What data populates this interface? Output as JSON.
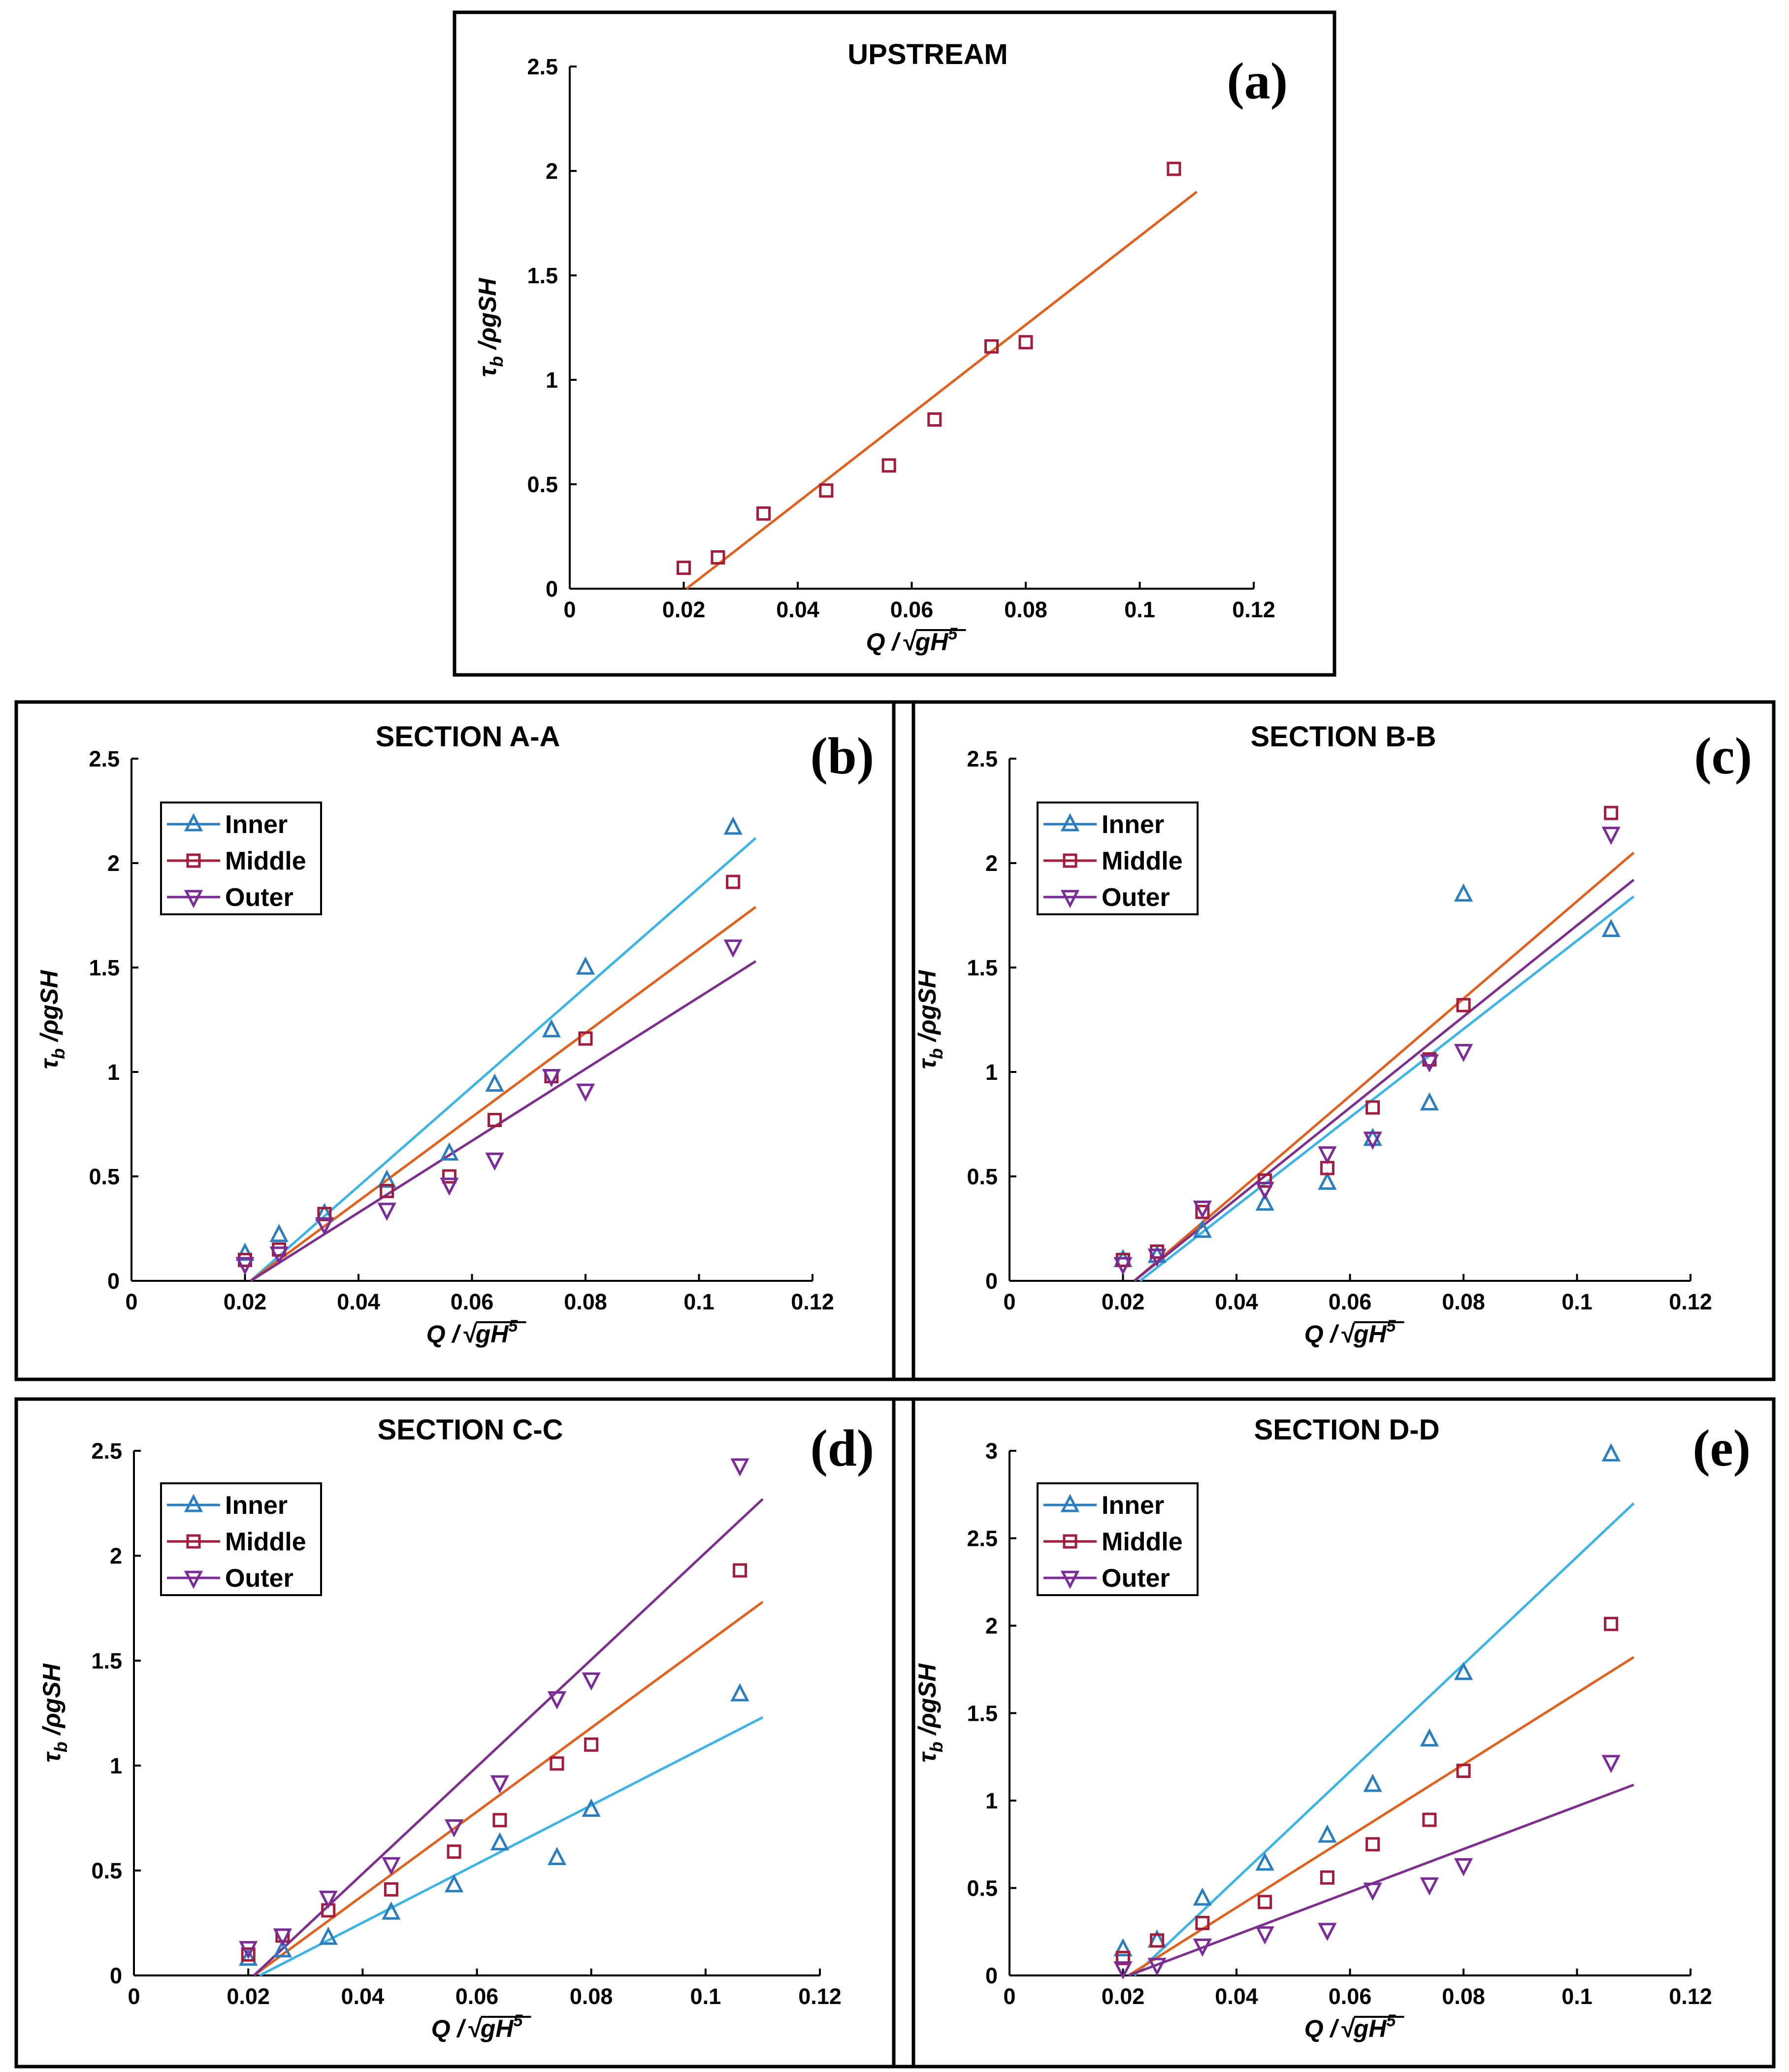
{
  "colors": {
    "inner": "#2a7dbf",
    "middle": "#a21d3c",
    "outer": "#7b2b97",
    "fit_inner": "#3cb4e6",
    "fit_middle": "#e0601c",
    "fit_outer": "#7e2f8e"
  },
  "axis_text": {
    "x_main": "Q /",
    "x_sqrt": "√gH",
    "x_sup": "5",
    "y_tau": "τ",
    "y_sub": "b",
    "y_rest": " /ρgSH"
  },
  "legend": {
    "inner": "Inner",
    "middle": "Middle",
    "outer": "Outer"
  },
  "chart_data": [
    {
      "id": "a",
      "type": "scatter",
      "title": "UPSTREAM",
      "letter": "(a)",
      "xlabel": "Q /√gH^5",
      "ylabel": "τb /ρgSH",
      "xlim": [
        0,
        0.12
      ],
      "ylim": [
        0,
        2.5
      ],
      "xticks": [
        "0",
        "0.02",
        "0.04",
        "0.06",
        "0.08",
        "0.1",
        "0.12"
      ],
      "yticks": [
        "0",
        "0.5",
        "1",
        "1.5",
        "2",
        "2.5"
      ],
      "legend": false,
      "series": [
        {
          "name": "Middle",
          "marker": "square",
          "x": [
            0.02,
            0.026,
            0.034,
            0.045,
            0.056,
            0.064,
            0.074,
            0.08,
            0.106
          ],
          "y": [
            0.1,
            0.15,
            0.36,
            0.47,
            0.59,
            0.81,
            1.16,
            1.18,
            2.01
          ],
          "fit": [
            [
              0.0205,
              0.0
            ],
            [
              0.11,
              1.9
            ]
          ]
        }
      ]
    },
    {
      "id": "b",
      "type": "scatter",
      "title": "SECTION A-A",
      "letter": "(b)",
      "xlabel": "Q /√gH^5",
      "ylabel": "τb /ρgSH",
      "xlim": [
        0,
        0.12
      ],
      "ylim": [
        0,
        2.5
      ],
      "xticks": [
        "0",
        "0.02",
        "0.04",
        "0.06",
        "0.08",
        "0.1",
        "0.12"
      ],
      "yticks": [
        "0",
        "0.5",
        "1",
        "1.5",
        "2",
        "2.5"
      ],
      "legend": true,
      "series": [
        {
          "name": "Inner",
          "marker": "triangle-up",
          "x": [
            0.02,
            0.026,
            0.034,
            0.045,
            0.056,
            0.064,
            0.074,
            0.08,
            0.106
          ],
          "y": [
            0.13,
            0.22,
            0.32,
            0.48,
            0.61,
            0.94,
            1.2,
            1.5,
            2.17
          ],
          "fit": [
            [
              0.021,
              0.0
            ],
            [
              0.11,
              2.12
            ]
          ]
        },
        {
          "name": "Middle",
          "marker": "square",
          "x": [
            0.02,
            0.026,
            0.034,
            0.045,
            0.056,
            0.064,
            0.074,
            0.08,
            0.106
          ],
          "y": [
            0.1,
            0.15,
            0.32,
            0.43,
            0.5,
            0.77,
            0.98,
            1.16,
            1.91
          ],
          "fit": [
            [
              0.021,
              0.0
            ],
            [
              0.11,
              1.79
            ]
          ]
        },
        {
          "name": "Outer",
          "marker": "triangle-down",
          "x": [
            0.02,
            0.026,
            0.034,
            0.045,
            0.056,
            0.064,
            0.074,
            0.08,
            0.106
          ],
          "y": [
            0.08,
            0.13,
            0.27,
            0.34,
            0.46,
            0.58,
            0.98,
            0.91,
            1.6
          ],
          "fit": [
            [
              0.021,
              0.0
            ],
            [
              0.11,
              1.53
            ]
          ]
        }
      ]
    },
    {
      "id": "c",
      "type": "scatter",
      "title": "SECTION B-B",
      "letter": "(c)",
      "xlabel": "Q /√gH^5",
      "ylabel": "τb /ρgSH",
      "xlim": [
        0,
        0.12
      ],
      "ylim": [
        0,
        2.5
      ],
      "xticks": [
        "0",
        "0.02",
        "0.04",
        "0.06",
        "0.08",
        "0.1",
        "0.12"
      ],
      "yticks": [
        "0",
        "0.5",
        "1",
        "1.5",
        "2",
        "2.5"
      ],
      "legend": true,
      "series": [
        {
          "name": "Inner",
          "marker": "triangle-up",
          "x": [
            0.02,
            0.026,
            0.034,
            0.045,
            0.056,
            0.064,
            0.074,
            0.08,
            0.106
          ],
          "y": [
            0.1,
            0.12,
            0.24,
            0.37,
            0.47,
            0.68,
            0.85,
            1.85,
            1.68
          ],
          "fit": [
            [
              0.023,
              0.0
            ],
            [
              0.11,
              1.84
            ]
          ]
        },
        {
          "name": "Middle",
          "marker": "square",
          "x": [
            0.02,
            0.026,
            0.034,
            0.045,
            0.056,
            0.064,
            0.074,
            0.08,
            0.106
          ],
          "y": [
            0.1,
            0.14,
            0.33,
            0.48,
            0.54,
            0.83,
            1.06,
            1.32,
            2.24
          ],
          "fit": [
            [
              0.022,
              0.0
            ],
            [
              0.11,
              2.05
            ]
          ]
        },
        {
          "name": "Outer",
          "marker": "triangle-down",
          "x": [
            0.02,
            0.026,
            0.034,
            0.045,
            0.056,
            0.064,
            0.074,
            0.08,
            0.106
          ],
          "y": [
            0.08,
            0.12,
            0.35,
            0.44,
            0.61,
            0.68,
            1.05,
            1.1,
            2.14
          ],
          "fit": [
            [
              0.022,
              0.0
            ],
            [
              0.11,
              1.92
            ]
          ]
        }
      ]
    },
    {
      "id": "d",
      "type": "scatter",
      "title": "SECTION C-C",
      "letter": "(d)",
      "xlabel": "Q /√gH^5",
      "ylabel": "τb /ρgSH",
      "xlim": [
        0,
        0.12
      ],
      "ylim": [
        0,
        2.5
      ],
      "xticks": [
        "0",
        "0.02",
        "0.04",
        "0.06",
        "0.08",
        "0.1",
        "0.12"
      ],
      "yticks": [
        "0",
        "0.5",
        "1",
        "1.5",
        "2",
        "2.5"
      ],
      "legend": true,
      "series": [
        {
          "name": "Inner",
          "marker": "triangle-up",
          "x": [
            0.02,
            0.026,
            0.034,
            0.045,
            0.056,
            0.064,
            0.074,
            0.08,
            0.106
          ],
          "y": [
            0.08,
            0.12,
            0.18,
            0.3,
            0.43,
            0.63,
            0.56,
            0.79,
            1.34
          ],
          "fit": [
            [
              0.022,
              0.0
            ],
            [
              0.11,
              1.23
            ]
          ]
        },
        {
          "name": "Middle",
          "marker": "square",
          "x": [
            0.02,
            0.026,
            0.034,
            0.045,
            0.056,
            0.064,
            0.074,
            0.08,
            0.106
          ],
          "y": [
            0.1,
            0.19,
            0.31,
            0.41,
            0.59,
            0.74,
            1.01,
            1.1,
            1.93
          ],
          "fit": [
            [
              0.021,
              0.0
            ],
            [
              0.11,
              1.78
            ]
          ]
        },
        {
          "name": "Outer",
          "marker": "triangle-down",
          "x": [
            0.02,
            0.026,
            0.034,
            0.045,
            0.056,
            0.064,
            0.074,
            0.08,
            0.106
          ],
          "y": [
            0.13,
            0.19,
            0.37,
            0.53,
            0.71,
            0.92,
            1.32,
            1.41,
            2.43
          ],
          "fit": [
            [
              0.021,
              0.0
            ],
            [
              0.11,
              2.27
            ]
          ]
        }
      ]
    },
    {
      "id": "e",
      "type": "scatter",
      "title": "SECTION D-D",
      "letter": "(e)",
      "xlabel": "Q /√gH^5",
      "ylabel": "τb /ρgSH",
      "xlim": [
        0,
        0.12
      ],
      "ylim": [
        0,
        3
      ],
      "xticks": [
        "0",
        "0.02",
        "0.04",
        "0.06",
        "0.08",
        "0.1",
        "0.12"
      ],
      "yticks": [
        "0",
        "0.5",
        "1",
        "1.5",
        "2",
        "2.5",
        "3"
      ],
      "legend": true,
      "series": [
        {
          "name": "Inner",
          "marker": "triangle-up",
          "x": [
            0.02,
            0.026,
            0.034,
            0.045,
            0.056,
            0.064,
            0.074,
            0.08,
            0.106
          ],
          "y": [
            0.15,
            0.2,
            0.44,
            0.64,
            0.8,
            1.09,
            1.35,
            1.73,
            2.98
          ],
          "fit": [
            [
              0.022,
              0.0
            ],
            [
              0.11,
              2.7
            ]
          ]
        },
        {
          "name": "Middle",
          "marker": "square",
          "x": [
            0.02,
            0.026,
            0.034,
            0.045,
            0.056,
            0.064,
            0.074,
            0.08,
            0.106
          ],
          "y": [
            0.1,
            0.2,
            0.3,
            0.42,
            0.56,
            0.75,
            0.89,
            1.17,
            2.01
          ],
          "fit": [
            [
              0.021,
              0.0
            ],
            [
              0.11,
              1.82
            ]
          ]
        },
        {
          "name": "Outer",
          "marker": "triangle-down",
          "x": [
            0.02,
            0.026,
            0.034,
            0.045,
            0.056,
            0.064,
            0.074,
            0.08,
            0.106
          ],
          "y": [
            0.04,
            0.06,
            0.17,
            0.24,
            0.26,
            0.49,
            0.52,
            0.63,
            1.22
          ],
          "fit": [
            [
              0.021,
              0.0
            ],
            [
              0.11,
              1.09
            ]
          ]
        }
      ]
    }
  ]
}
